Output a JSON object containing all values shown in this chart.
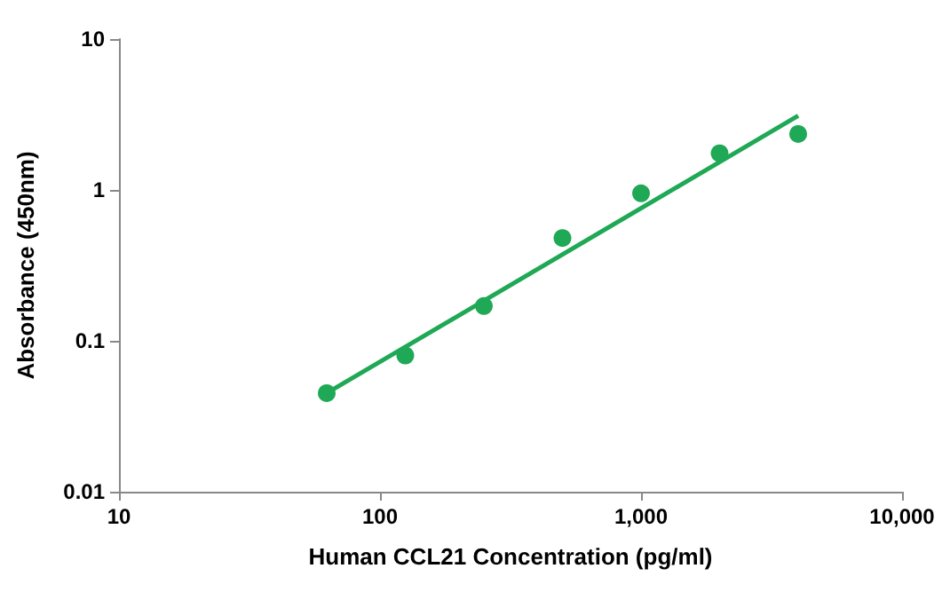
{
  "chart_data": {
    "type": "scatter",
    "xlabel": "Human CCL21 Concentration (pg/ml)",
    "ylabel": "Absorbance (450nm)",
    "log": "xy",
    "grid": false,
    "marker": "circle",
    "xlim": [
      10,
      10000
    ],
    "xticks": [
      10,
      100,
      {
        "value": 1000,
        "label": "1,000"
      },
      {
        "value": 10000,
        "label": "10,000"
      }
    ],
    "ylim": [
      0.01,
      10
    ],
    "yticks": [
      0.01,
      0.1,
      1,
      10
    ],
    "x": [
      62.5,
      125,
      250,
      500,
      1000,
      2000,
      4000
    ],
    "series": [
      {
        "color": "#1fa855",
        "values": [
          0.045,
          0.08,
          0.17,
          0.48,
          0.95,
          1.75,
          2.35
        ]
      },
      {
        "type": "line",
        "color": "#1fa855",
        "x": [
          62.5,
          4000
        ],
        "values": [
          0.045,
          3.1
        ],
        "marker": "none",
        "line_style": "solid"
      }
    ]
  }
}
